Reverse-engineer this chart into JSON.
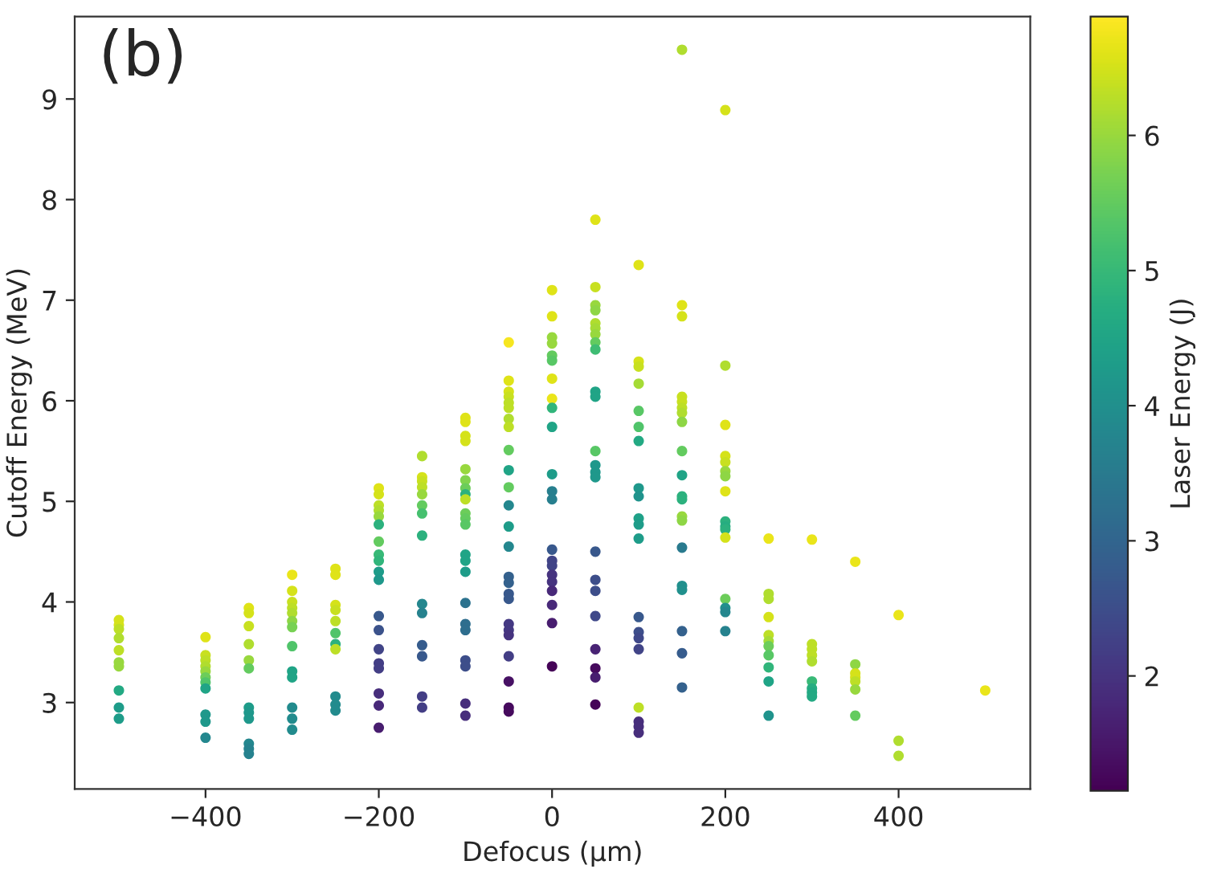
{
  "chart_data": {
    "type": "scatter",
    "xlabel": "Defocus (µm)",
    "ylabel": "Cutoff Energy (MeV)",
    "clabel": "Laser Energy (J)",
    "annotations": [
      "(b)"
    ],
    "xlim": [
      -551,
      552
    ],
    "ylim": [
      2.14,
      9.82
    ],
    "xticks": [
      {
        "value": -400,
        "label": "−400"
      },
      {
        "value": -200,
        "label": "−200"
      },
      0,
      200,
      400
    ],
    "yticks": [
      3,
      4,
      5,
      6,
      7,
      8,
      9
    ],
    "clim": [
      1.15,
      6.88
    ],
    "cticks": [
      2,
      3,
      4,
      5,
      6
    ],
    "marker": "circle",
    "grid": false,
    "x": [
      -500,
      -500,
      -500,
      -500,
      -500,
      -500,
      -500,
      -500,
      -500,
      -500,
      -400,
      -400,
      -400,
      -400,
      -400,
      -400,
      -400,
      -400,
      -400,
      -400,
      -400,
      -350,
      -350,
      -350,
      -350,
      -350,
      -350,
      -350,
      -350,
      -350,
      -350,
      -350,
      -350,
      -300,
      -300,
      -300,
      -300,
      -300,
      -300,
      -300,
      -300,
      -300,
      -300,
      -300,
      -300,
      -300,
      -250,
      -250,
      -250,
      -250,
      -250,
      -250,
      -250,
      -250,
      -250,
      -250,
      -250,
      -200,
      -200,
      -200,
      -200,
      -200,
      -200,
      -200,
      -200,
      -200,
      -200,
      -200,
      -200,
      -200,
      -200,
      -200,
      -200,
      -200,
      -200,
      -200,
      -150,
      -150,
      -150,
      -150,
      -150,
      -150,
      -150,
      -150,
      -150,
      -150,
      -150,
      -150,
      -150,
      -150,
      -100,
      -100,
      -100,
      -100,
      -100,
      -100,
      -100,
      -100,
      -100,
      -100,
      -100,
      -100,
      -100,
      -100,
      -100,
      -100,
      -100,
      -100,
      -100,
      -100,
      -100,
      -100,
      -50,
      -50,
      -50,
      -50,
      -50,
      -50,
      -50,
      -50,
      -50,
      -50,
      -50,
      -50,
      -50,
      -50,
      -50,
      -50,
      -50,
      -50,
      -50,
      -50,
      -50,
      -50,
      -50,
      -50,
      -50,
      0,
      0,
      0,
      0,
      0,
      0,
      0,
      0,
      0,
      0,
      0,
      0,
      0,
      0,
      0,
      0,
      0,
      0,
      0,
      0,
      0,
      0,
      50,
      50,
      50,
      50,
      50,
      50,
      50,
      50,
      50,
      50,
      50,
      50,
      50,
      50,
      50,
      50,
      50,
      50,
      50,
      50,
      50,
      50,
      50,
      100,
      100,
      100,
      100,
      100,
      100,
      100,
      100,
      100,
      100,
      100,
      100,
      100,
      100,
      100,
      100,
      100,
      100,
      100,
      100,
      150,
      150,
      150,
      150,
      150,
      150,
      150,
      150,
      150,
      150,
      150,
      150,
      150,
      150,
      150,
      150,
      150,
      150,
      150,
      150,
      200,
      200,
      200,
      200,
      200,
      200,
      200,
      200,
      200,
      200,
      200,
      200,
      200,
      200,
      200,
      200,
      250,
      250,
      250,
      250,
      250,
      250,
      250,
      250,
      250,
      250,
      250,
      300,
      300,
      300,
      300,
      300,
      300,
      300,
      300,
      300,
      350,
      350,
      350,
      350,
      350,
      350,
      350,
      400,
      400,
      400,
      500
    ],
    "values": [
      3.82,
      3.77,
      3.73,
      3.64,
      3.52,
      3.4,
      3.36,
      3.12,
      2.95,
      2.84,
      3.65,
      3.47,
      3.42,
      3.36,
      3.31,
      3.25,
      3.2,
      3.14,
      2.88,
      2.81,
      2.65,
      3.94,
      3.89,
      3.76,
      3.58,
      3.42,
      3.34,
      2.95,
      2.9,
      2.84,
      2.59,
      2.54,
      2.49,
      4.27,
      4.11,
      4.0,
      3.94,
      3.89,
      3.81,
      3.75,
      3.56,
      3.31,
      3.25,
      2.95,
      2.84,
      2.73,
      4.33,
      4.27,
      3.97,
      3.92,
      3.81,
      3.69,
      3.58,
      3.53,
      3.06,
      2.98,
      2.92,
      5.13,
      5.07,
      4.96,
      4.91,
      4.85,
      4.77,
      4.6,
      4.47,
      4.41,
      4.3,
      4.22,
      3.86,
      3.72,
      3.53,
      3.39,
      3.34,
      3.09,
      2.97,
      2.75,
      5.45,
      5.24,
      5.2,
      5.14,
      5.07,
      4.96,
      4.88,
      4.66,
      3.98,
      3.89,
      3.57,
      3.46,
      3.06,
      2.95,
      5.83,
      5.79,
      5.65,
      5.6,
      5.32,
      5.21,
      5.13,
      5.07,
      5.02,
      4.88,
      4.83,
      4.77,
      4.47,
      4.41,
      4.3,
      3.99,
      3.78,
      3.72,
      3.42,
      3.36,
      2.99,
      2.87,
      6.58,
      6.2,
      6.09,
      6.04,
      5.98,
      5.93,
      5.82,
      5.74,
      5.51,
      5.31,
      5.14,
      4.96,
      4.75,
      4.55,
      4.25,
      4.19,
      4.08,
      4.03,
      3.78,
      3.72,
      3.67,
      3.46,
      3.21,
      2.95,
      2.91,
      7.1,
      6.84,
      6.63,
      6.57,
      6.45,
      6.4,
      6.22,
      6.02,
      5.93,
      5.74,
      5.27,
      5.1,
      5.02,
      4.52,
      4.41,
      4.36,
      4.27,
      4.2,
      4.11,
      3.97,
      3.79,
      3.36,
      7.8,
      7.13,
      6.95,
      6.9,
      6.77,
      6.72,
      6.66,
      6.58,
      6.51,
      6.09,
      6.04,
      5.5,
      5.36,
      5.29,
      5.24,
      4.5,
      4.22,
      4.11,
      3.86,
      3.53,
      3.34,
      3.25,
      2.98,
      7.35,
      6.39,
      6.34,
      6.17,
      5.9,
      5.74,
      5.6,
      5.13,
      5.05,
      4.83,
      4.77,
      4.63,
      3.85,
      3.7,
      3.64,
      3.53,
      2.95,
      2.81,
      2.76,
      2.7,
      9.49,
      6.95,
      6.84,
      6.04,
      5.99,
      5.93,
      5.88,
      5.79,
      5.5,
      5.26,
      5.05,
      5.02,
      4.85,
      4.81,
      4.54,
      4.16,
      4.12,
      3.71,
      3.49,
      3.15,
      8.89,
      6.35,
      5.76,
      5.45,
      5.39,
      5.3,
      5.25,
      5.1,
      4.8,
      4.75,
      4.72,
      4.64,
      4.03,
      3.94,
      3.9,
      3.71,
      4.63,
      4.08,
      4.03,
      3.85,
      3.67,
      3.61,
      3.56,
      3.47,
      3.35,
      3.21,
      2.87,
      4.62,
      3.58,
      3.53,
      3.47,
      3.41,
      3.21,
      3.14,
      3.1,
      3.06,
      4.4,
      3.38,
      3.29,
      3.25,
      3.21,
      3.13,
      2.87,
      3.87,
      2.62,
      2.47,
      3.12
    ],
    "cvalues": [
      6.5,
      6.5,
      6.3,
      6.2,
      6.3,
      6.0,
      6.0,
      4.6,
      4.3,
      4.3,
      6.6,
      6.4,
      6.3,
      6.2,
      6.0,
      5.6,
      5.3,
      4.5,
      4.2,
      4.2,
      3.8,
      6.6,
      6.5,
      6.4,
      6.2,
      6.0,
      5.5,
      4.3,
      4.2,
      4.2,
      3.8,
      3.7,
      3.7,
      6.7,
      6.5,
      6.4,
      6.3,
      6.2,
      5.9,
      5.7,
      5.3,
      4.5,
      4.5,
      3.9,
      3.9,
      3.9,
      6.6,
      6.6,
      6.5,
      6.4,
      6.3,
      5.3,
      4.8,
      6.3,
      3.9,
      3.9,
      3.9,
      6.6,
      6.5,
      6.3,
      6.2,
      6.0,
      4.8,
      5.5,
      5.0,
      4.9,
      4.3,
      4.2,
      2.7,
      2.6,
      2.3,
      2.2,
      2.2,
      1.9,
      1.8,
      1.6,
      6.2,
      6.5,
      6.4,
      6.3,
      6.0,
      5.5,
      5.2,
      4.8,
      3.8,
      3.7,
      2.8,
      2.7,
      2.2,
      2.2,
      6.6,
      6.6,
      6.5,
      6.5,
      6.0,
      5.8,
      5.6,
      4.8,
      6.3,
      5.6,
      5.5,
      5.4,
      4.5,
      4.5,
      4.3,
      3.3,
      3.2,
      3.2,
      2.5,
      2.5,
      1.9,
      1.9,
      6.8,
      6.6,
      6.5,
      6.4,
      6.3,
      6.3,
      6.2,
      6.3,
      5.5,
      4.5,
      5.5,
      3.8,
      4.3,
      3.8,
      2.9,
      2.9,
      2.7,
      2.7,
      2.1,
      2.1,
      2.0,
      2.2,
      1.4,
      1.3,
      1.3,
      6.6,
      6.6,
      6.0,
      6.0,
      5.5,
      5.4,
      6.6,
      6.7,
      4.9,
      4.5,
      4.3,
      3.6,
      3.6,
      2.7,
      2.3,
      2.3,
      2.0,
      2.0,
      1.8,
      1.8,
      1.6,
      1.2,
      6.6,
      6.4,
      6.0,
      5.9,
      6.2,
      6.1,
      6.0,
      5.5,
      5.1,
      4.5,
      4.5,
      5.4,
      4.2,
      4.2,
      4.2,
      2.7,
      2.5,
      2.5,
      2.4,
      1.7,
      1.3,
      1.6,
      1.2,
      6.6,
      6.5,
      6.4,
      6.1,
      5.4,
      5.3,
      4.6,
      4.2,
      4.1,
      4.4,
      4.3,
      4.3,
      2.7,
      2.5,
      2.4,
      2.3,
      6.3,
      1.9,
      1.9,
      1.9,
      6.2,
      6.6,
      6.5,
      6.4,
      6.4,
      6.3,
      6.2,
      5.9,
      5.5,
      4.5,
      4.8,
      4.8,
      6.0,
      5.9,
      3.5,
      4.0,
      4.0,
      2.9,
      2.8,
      2.9,
      6.5,
      6.2,
      6.6,
      6.5,
      6.4,
      6.0,
      5.9,
      6.6,
      4.8,
      4.7,
      4.8,
      6.5,
      5.6,
      4.0,
      3.8,
      3.7,
      6.7,
      6.2,
      6.2,
      6.5,
      6.3,
      6.1,
      5.6,
      5.4,
      4.9,
      4.5,
      4.1,
      6.7,
      6.3,
      6.3,
      6.3,
      6.2,
      5.0,
      4.7,
      4.6,
      4.6,
      6.7,
      5.9,
      6.5,
      6.5,
      6.3,
      6.0,
      5.5,
      6.7,
      6.2,
      6.2,
      6.7
    ]
  }
}
